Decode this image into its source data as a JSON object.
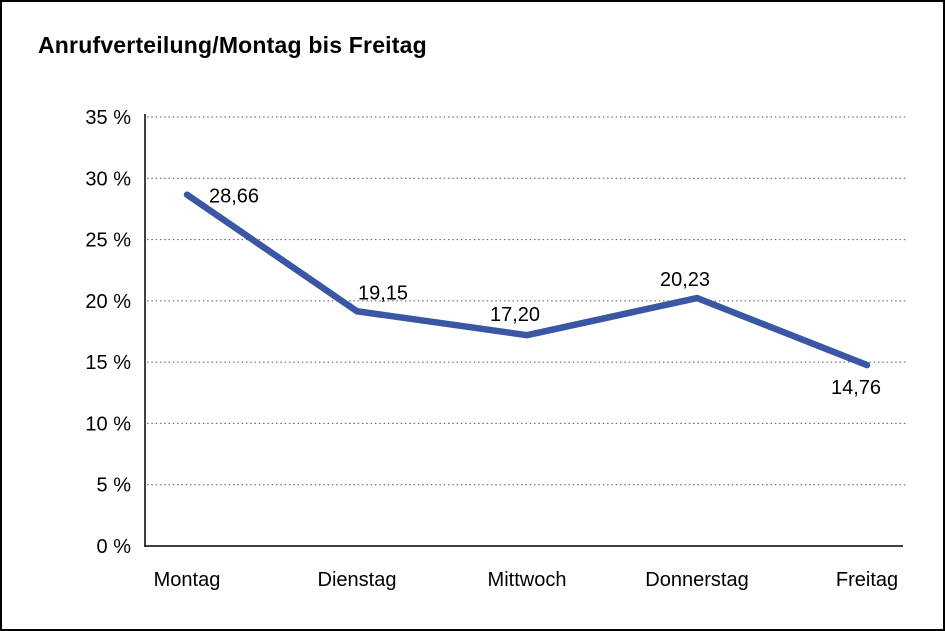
{
  "page": {
    "background_color": "#ffffff",
    "frame_color": "#000000"
  },
  "chart_data": {
    "type": "line",
    "title": "Anrufverteilung/Montag bis Freitag",
    "categories": [
      "Montag",
      "Dienstag",
      "Mittwoch",
      "Donnerstag",
      "Freitag"
    ],
    "values": [
      28.66,
      19.15,
      17.2,
      20.23,
      14.76
    ],
    "value_labels": [
      "28,66",
      "19,15",
      "17,20",
      "20,23",
      "14,76"
    ],
    "xlabel": "",
    "ylabel": "",
    "ylim": [
      0,
      35
    ],
    "ytick_step": 5,
    "ytick_labels": [
      "0 %",
      "5 %",
      "10 %",
      "15 %",
      "20 %",
      "25 %",
      "30 %",
      "35 %"
    ],
    "grid": "horizontal-dotted",
    "legend": "none",
    "series_color": "#3A57A5",
    "text_color": "#000000",
    "grid_color": "#555555",
    "axis_color": "#000000"
  }
}
